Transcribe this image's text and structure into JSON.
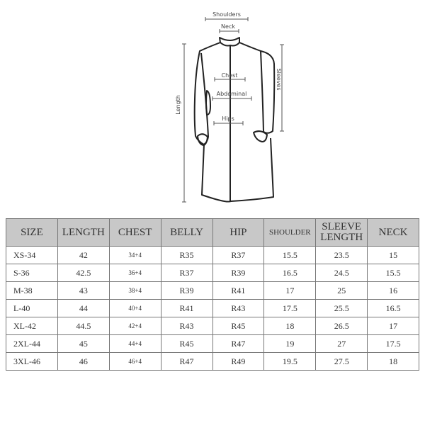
{
  "diagram": {
    "labels": {
      "shoulders": "Shoulders",
      "neck": "Neck",
      "chest": "Chest",
      "abdominal": "Abdominal",
      "hips": "Hips",
      "length": "Length",
      "sleeves": "Sleeves"
    }
  },
  "table": {
    "headers": [
      "SIZE",
      "LENGTH",
      "CHEST",
      "BELLY",
      "HIP",
      "SHOULDER",
      "SLEEVE LENGTH",
      "NECK"
    ],
    "rows": [
      [
        "XS-34",
        "42",
        "34+4",
        "R35",
        "R37",
        "15.5",
        "23.5",
        "15"
      ],
      [
        "S-36",
        "42.5",
        "36+4",
        "R37",
        "R39",
        "16.5",
        "24.5",
        "15.5"
      ],
      [
        "M-38",
        "43",
        "38+4",
        "R39",
        "R41",
        "17",
        "25",
        "16"
      ],
      [
        "L-40",
        "44",
        "40+4",
        "R41",
        "R43",
        "17.5",
        "25.5",
        "16.5"
      ],
      [
        "XL-42",
        "44.5",
        "42+4",
        "R43",
        "R45",
        "18",
        "26.5",
        "17"
      ],
      [
        "2XL-44",
        "45",
        "44+4",
        "R45",
        "R47",
        "19",
        "27",
        "17.5"
      ],
      [
        "3XL-46",
        "46",
        "46+4",
        "R47",
        "R49",
        "19.5",
        "27.5",
        "18"
      ]
    ]
  }
}
